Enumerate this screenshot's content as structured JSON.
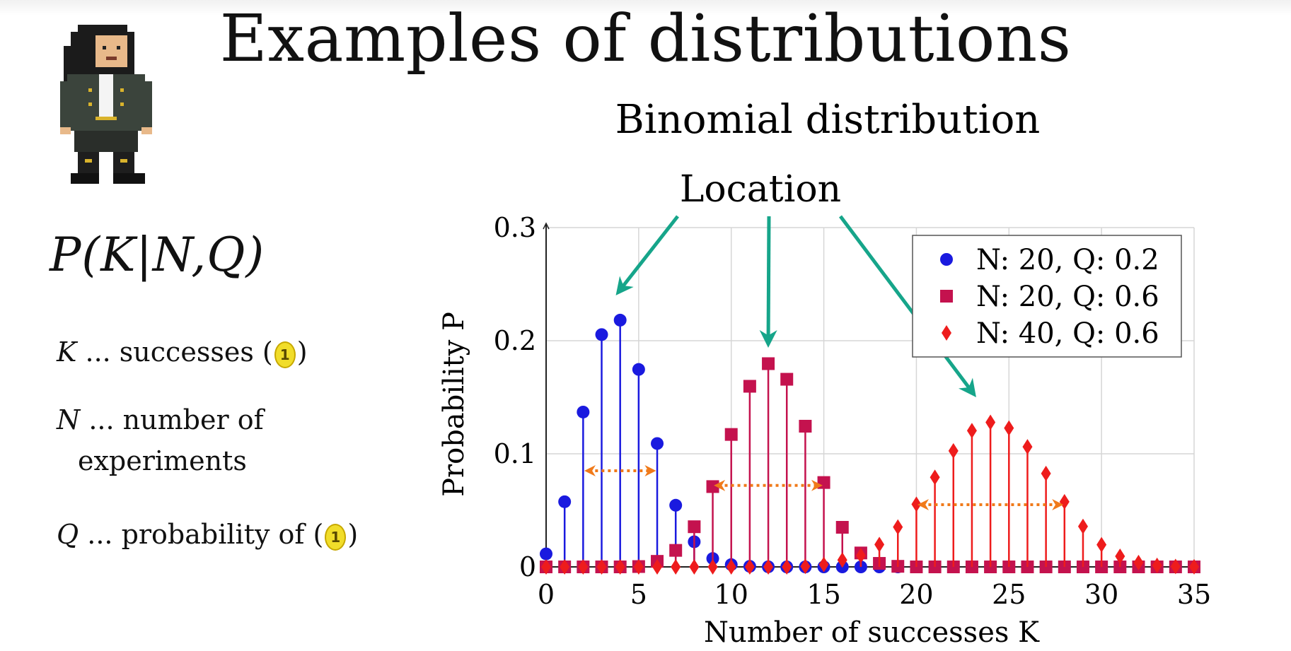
{
  "page": {
    "title": "Examples of distributions",
    "formula": "P(K|N,Q)",
    "definitions": {
      "k_var": "K",
      "k_text": "... successes (",
      "k_close": ")",
      "n_var": "N",
      "n_text": "... number of",
      "n_text2": "experiments",
      "q_var": "Q",
      "q_text": "... probability of (",
      "q_close": ")",
      "coin_symbol": "1"
    },
    "annotation_label": "Location"
  },
  "chart_data": {
    "type": "stem",
    "title": "Binomial distribution",
    "xlabel": "Number of successes K",
    "ylabel": "Probability P",
    "xlim": [
      0,
      35
    ],
    "ylim": [
      0,
      0.3
    ],
    "xticks": [
      0,
      5,
      10,
      15,
      20,
      25,
      30,
      35
    ],
    "yticks": [
      0,
      0.1,
      0.2,
      0.3
    ],
    "grid": true,
    "legend_position": "top-right",
    "series": [
      {
        "name": "N: 20, Q: 0.2",
        "color": "#1a1adf",
        "marker": "circle",
        "x": [
          0,
          1,
          2,
          3,
          4,
          5,
          6,
          7,
          8,
          9,
          10,
          11,
          12,
          13,
          14,
          15,
          16,
          17,
          18,
          19,
          20,
          21,
          22,
          23,
          24,
          25,
          26,
          27,
          28,
          29,
          30,
          31,
          32,
          33,
          34,
          35
        ],
        "values": [
          0.0115,
          0.0576,
          0.1369,
          0.2054,
          0.2182,
          0.1746,
          0.1091,
          0.0545,
          0.0222,
          0.0074,
          0.002,
          0.0005,
          0.0001,
          0,
          0,
          0,
          0,
          0,
          0,
          0,
          0,
          0,
          0,
          0,
          0,
          0,
          0,
          0,
          0,
          0,
          0,
          0,
          0,
          0,
          0,
          0
        ]
      },
      {
        "name": "N: 20, Q: 0.6",
        "color": "#c4124e",
        "marker": "square",
        "x": [
          0,
          1,
          2,
          3,
          4,
          5,
          6,
          7,
          8,
          9,
          10,
          11,
          12,
          13,
          14,
          15,
          16,
          17,
          18,
          19,
          20,
          21,
          22,
          23,
          24,
          25,
          26,
          27,
          28,
          29,
          30,
          31,
          32,
          33,
          34,
          35
        ],
        "values": [
          0,
          0,
          0,
          0,
          0,
          0.0003,
          0.0049,
          0.0146,
          0.0355,
          0.071,
          0.1171,
          0.1597,
          0.1797,
          0.1659,
          0.1244,
          0.0746,
          0.035,
          0.0123,
          0.0031,
          0.0005,
          0,
          0,
          0,
          0,
          0,
          0,
          0,
          0,
          0,
          0,
          0,
          0,
          0,
          0,
          0,
          0
        ]
      },
      {
        "name": "N: 40, Q: 0.6",
        "color": "#ee1c1c",
        "marker": "diamond",
        "x": [
          0,
          1,
          2,
          3,
          4,
          5,
          6,
          7,
          8,
          9,
          10,
          11,
          12,
          13,
          14,
          15,
          16,
          17,
          18,
          19,
          20,
          21,
          22,
          23,
          24,
          25,
          26,
          27,
          28,
          29,
          30,
          31,
          32,
          33,
          34,
          35
        ],
        "values": [
          0,
          0,
          0,
          0,
          0,
          0,
          0,
          0,
          0,
          0,
          0,
          0,
          0,
          0,
          0.0005,
          0.0021,
          0.0061,
          0.01,
          0.0198,
          0.0352,
          0.0554,
          0.0792,
          0.1026,
          0.1205,
          0.1278,
          0.1227,
          0.1062,
          0.0826,
          0.0576,
          0.0358,
          0.0196,
          0.0094,
          0.0038,
          0.0013,
          0.0004,
          0.0001
        ]
      }
    ],
    "spread_arrows": [
      {
        "color": "#f07a1a",
        "x1": 2,
        "x2": 6,
        "y": 0.085
      },
      {
        "color": "#f07a1a",
        "x1": 9,
        "x2": 15,
        "y": 0.072
      },
      {
        "color": "#f07a1a",
        "x1": 20,
        "x2": 28,
        "y": 0.055
      }
    ],
    "location_arrows": [
      {
        "color": "#16a58a",
        "target_x": 4,
        "target_y": 0.245
      },
      {
        "color": "#16a58a",
        "target_x": 12,
        "target_y": 0.2
      },
      {
        "color": "#16a58a",
        "target_x": 23,
        "target_y": 0.155
      }
    ]
  }
}
